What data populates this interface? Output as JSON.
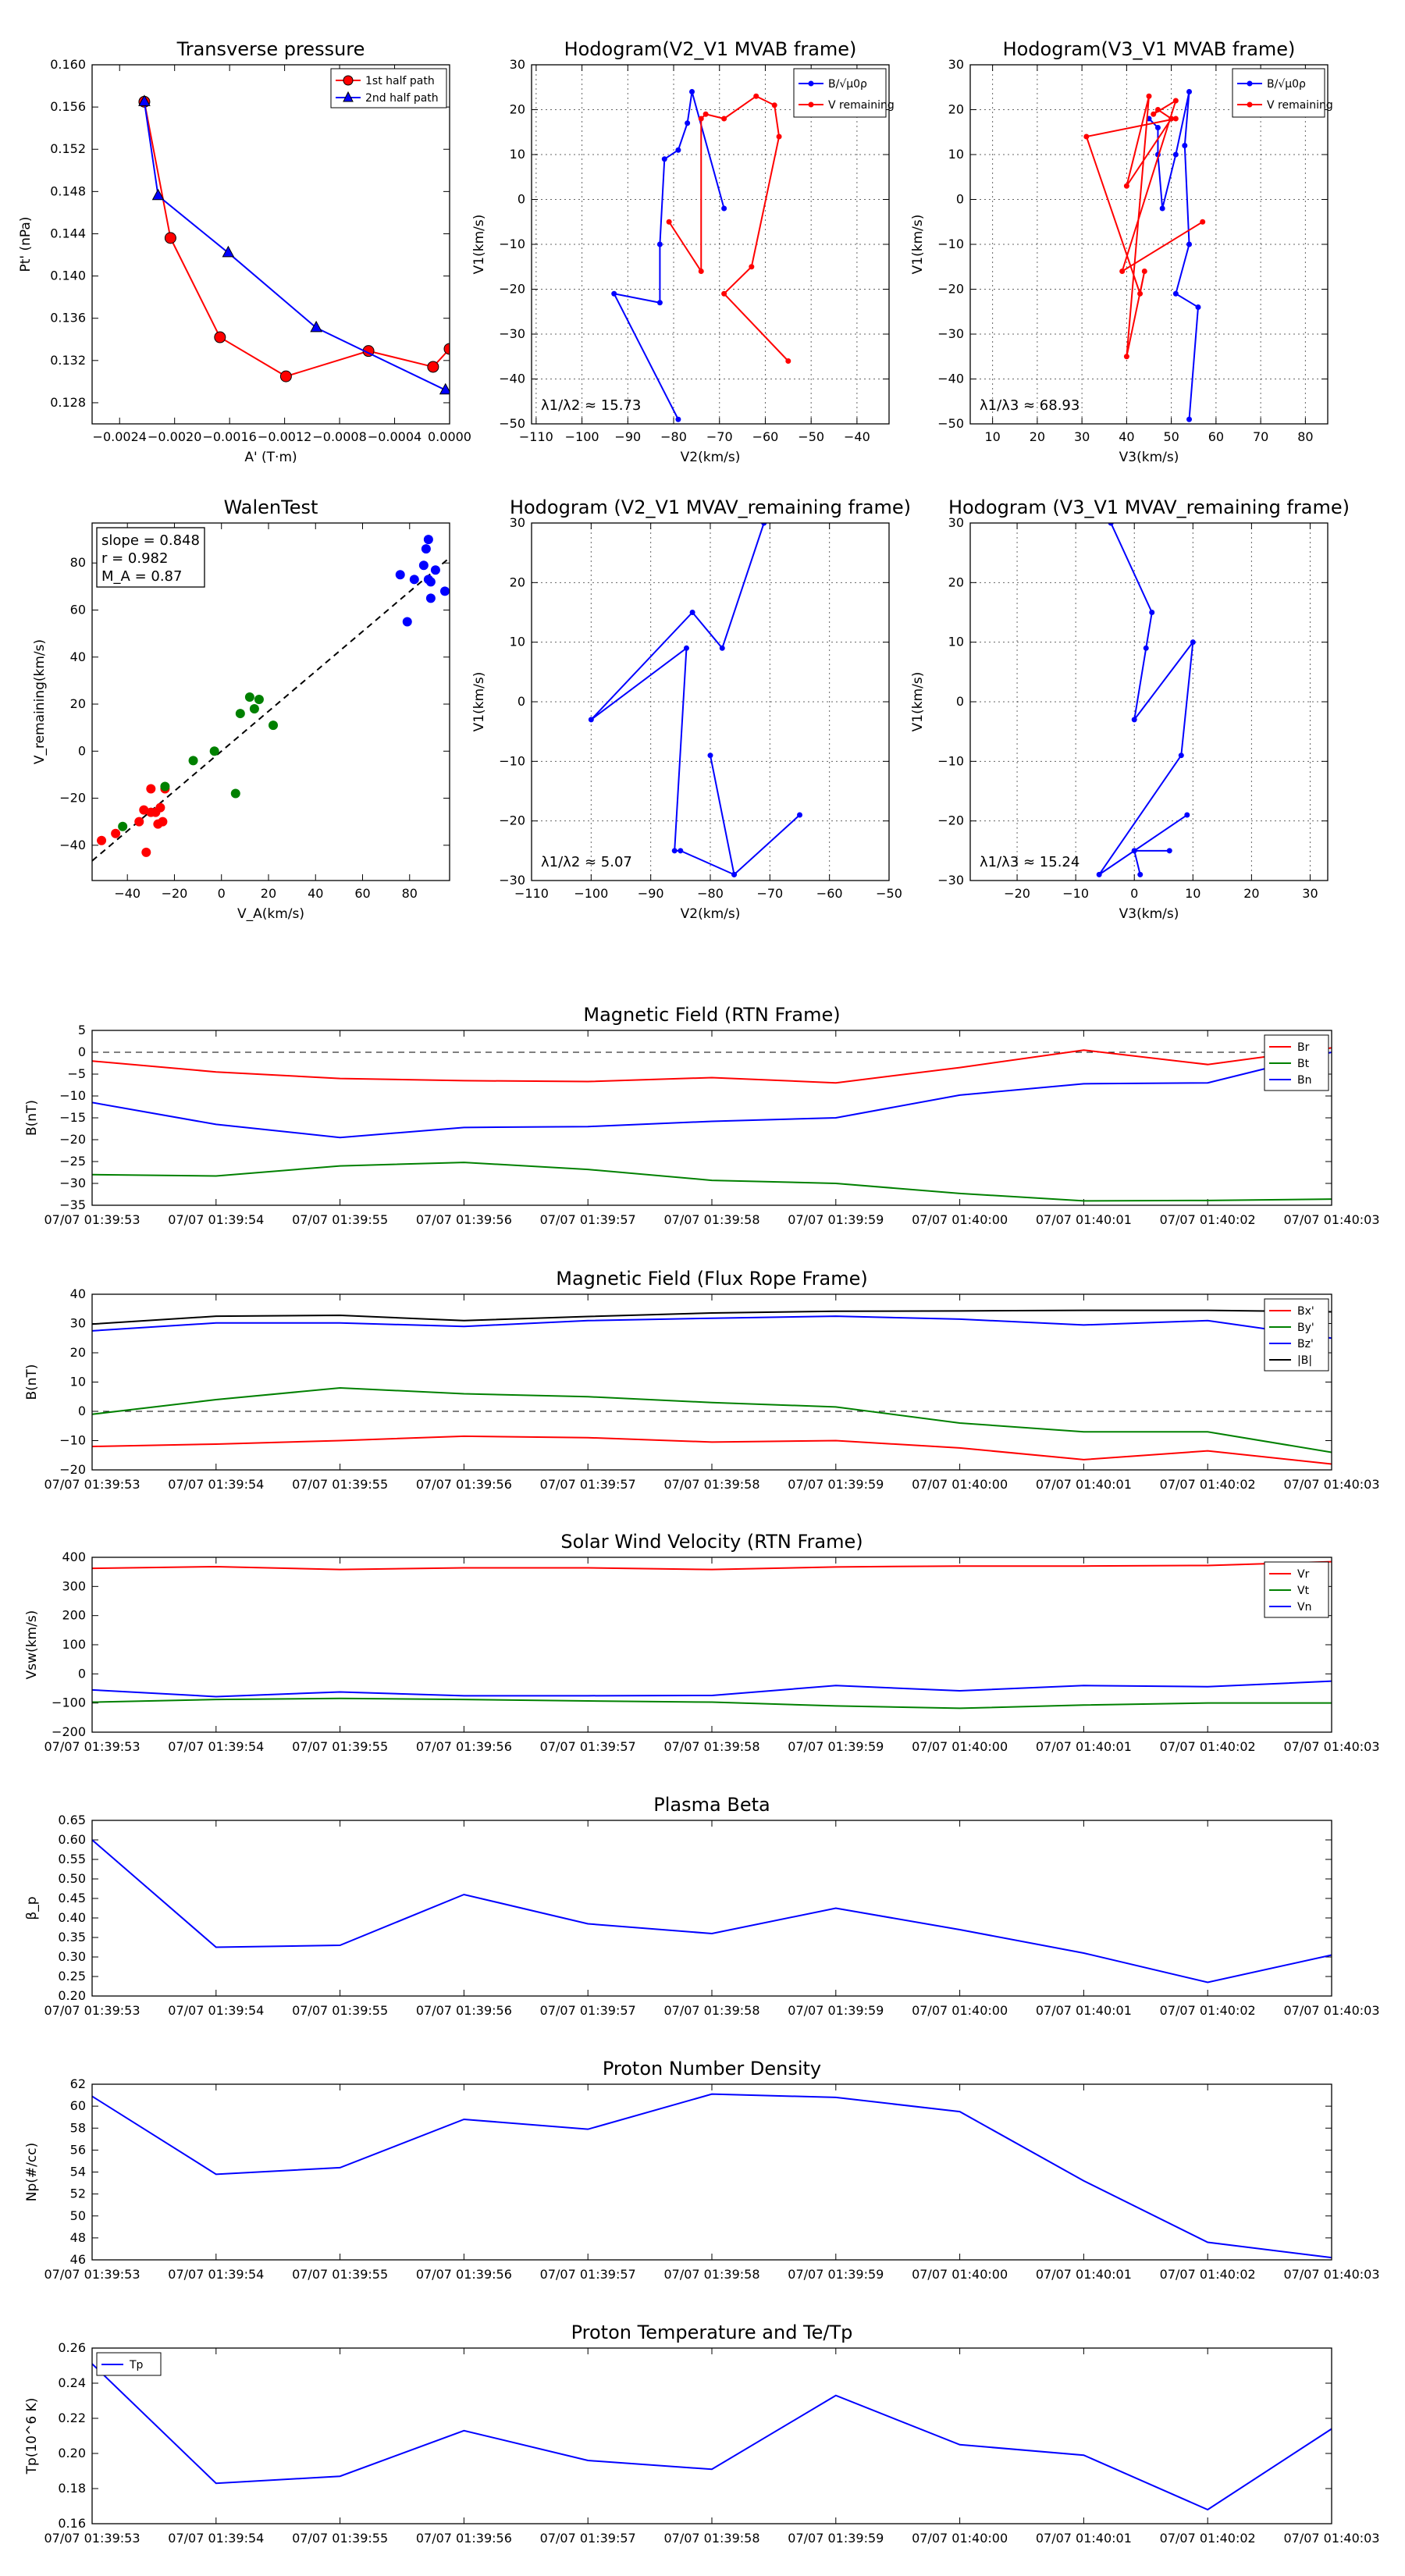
{
  "chart_data": [
    {
      "id": "pt",
      "type": "line",
      "title": "Transverse pressure",
      "xlabel": "A' (T·m)",
      "ylabel": "Pt' (nPa)",
      "xlim": [
        -0.0026,
        0.0
      ],
      "ylim": [
        0.126,
        0.16
      ],
      "xticks": [
        -0.0024,
        -0.002,
        -0.0016,
        -0.0012,
        -0.0008,
        -0.0004,
        0.0
      ],
      "xtick_labels": [
        "−0.0024",
        "−0.0020",
        "−0.0016",
        "−0.0012",
        "−0.0008",
        "−0.0004",
        "0.0000"
      ],
      "yticks": [
        0.128,
        0.132,
        0.136,
        0.14,
        0.144,
        0.148,
        0.152,
        0.156,
        0.16
      ],
      "ytick_labels": [
        "0.128",
        "0.132",
        "0.136",
        "0.140",
        "0.144",
        "0.148",
        "0.152",
        "0.156",
        "0.160"
      ],
      "grid": false,
      "legend": "top-right",
      "series": [
        {
          "name": "1st half path",
          "color": "#ff0000",
          "marker": "circle",
          "x": [
            -0.00222,
            -0.00203,
            -0.00167,
            -0.00119,
            -0.00059,
            -0.00012,
            0.0
          ],
          "y": [
            0.1565,
            0.1436,
            0.1342,
            0.1305,
            0.1329,
            0.1314,
            0.1331
          ]
        },
        {
          "name": "2nd half path",
          "color": "#0000ff",
          "marker": "triangle",
          "x": [
            -0.00222,
            -0.00212,
            -0.00161,
            -0.00097,
            -3e-05
          ],
          "y": [
            0.1565,
            0.1476,
            0.1422,
            0.1351,
            0.1292
          ]
        }
      ]
    },
    {
      "id": "hod1",
      "type": "line",
      "title": "Hodogram(V2_V1 MVAB frame)",
      "xlabel": "V2(km/s)",
      "ylabel": "V1(km/s)",
      "xlim": [
        -111,
        -33
      ],
      "ylim": [
        -50,
        30
      ],
      "xticks": [
        -110,
        -100,
        -90,
        -80,
        -70,
        -60,
        -50,
        -40
      ],
      "yticks": [
        -50,
        -40,
        -30,
        -20,
        -10,
        0,
        10,
        20,
        30
      ],
      "grid": true,
      "legend": "top-right",
      "annotation": "λ1/λ2 ≈ 15.73",
      "series": [
        {
          "name": "B/√μ0ρ",
          "color": "#0000ff",
          "x": [
            -69,
            -76,
            -77,
            -79,
            -82,
            -83,
            -83,
            -93,
            -79
          ],
          "y": [
            -2,
            24,
            17,
            11,
            9,
            -10,
            -23,
            -21,
            -49
          ]
        },
        {
          "name": "V remaining",
          "color": "#ff0000",
          "x": [
            -81,
            -74,
            -74,
            -73,
            -69,
            -62,
            -58,
            -57,
            -63,
            -69,
            -55
          ],
          "y": [
            -5,
            -16,
            18,
            19,
            18,
            23,
            21,
            14,
            -15,
            -21,
            -36
          ]
        }
      ]
    },
    {
      "id": "hod2",
      "type": "line",
      "title": "Hodogram(V3_V1 MVAB frame)",
      "xlabel": "V3(km/s)",
      "ylabel": "V1(km/s)",
      "xlim": [
        5,
        85
      ],
      "ylim": [
        -50,
        30
      ],
      "xticks": [
        10,
        20,
        30,
        40,
        50,
        60,
        70,
        80
      ],
      "yticks": [
        -50,
        -40,
        -30,
        -20,
        -10,
        0,
        10,
        20,
        30
      ],
      "grid": true,
      "legend": "top-right",
      "annotation": "λ1/λ3 ≈ 68.93",
      "series": [
        {
          "name": "B/√μ0ρ",
          "color": "#0000ff",
          "x": [
            45,
            47,
            47,
            48,
            51,
            54,
            53,
            54,
            51,
            56,
            54
          ],
          "y": [
            18,
            16,
            10,
            -2,
            10,
            24,
            12,
            -10,
            -21,
            -24,
            -49
          ]
        },
        {
          "name": "V remaining",
          "color": "#ff0000",
          "x": [
            57,
            39,
            51,
            46,
            47,
            50,
            40,
            45,
            40,
            44,
            43,
            31,
            51
          ],
          "y": [
            -5,
            -16,
            22,
            19,
            20,
            18,
            3,
            23,
            -35,
            -16,
            -21,
            14,
            18
          ]
        }
      ]
    },
    {
      "id": "walen",
      "type": "scatter",
      "title": "WalenTest",
      "xlabel": "V_A(km/s)",
      "ylabel": "V_remaining(km/s)",
      "xlim": [
        -55,
        97
      ],
      "ylim": [
        -55,
        97
      ],
      "xticks": [
        -40,
        -20,
        0,
        20,
        40,
        60,
        80
      ],
      "yticks": [
        -40,
        -20,
        0,
        20,
        40,
        60,
        80
      ],
      "grid": false,
      "annotation": [
        "slope = 0.848",
        "r = 0.982",
        "M_A = 0.87"
      ],
      "fit": {
        "slope": 0.848,
        "intercept": 0
      },
      "series": [
        {
          "name": "red",
          "color": "#ff0000",
          "x": [
            -51,
            -45,
            -35,
            -33,
            -32,
            -30,
            -30,
            -28,
            -27,
            -25,
            -26,
            -24
          ],
          "y": [
            -38,
            -35,
            -30,
            -25,
            -43,
            -26,
            -16,
            -26,
            -31,
            -30,
            -24,
            -16
          ]
        },
        {
          "name": "green",
          "color": "#008000",
          "x": [
            -42,
            -24,
            -12,
            -3,
            6,
            8,
            12,
            14,
            16,
            22
          ],
          "y": [
            -32,
            -15,
            -4,
            0,
            -18,
            16,
            23,
            18,
            22,
            11
          ]
        },
        {
          "name": "blue",
          "color": "#0000ff",
          "x": [
            76,
            79,
            82,
            86,
            87,
            88,
            88,
            89,
            89,
            91,
            95
          ],
          "y": [
            75,
            55,
            73,
            79,
            86,
            73,
            90,
            72,
            65,
            77,
            68
          ]
        }
      ]
    },
    {
      "id": "hod3",
      "type": "line",
      "title": "Hodogram (V2_V1 MVAV_remaining frame)",
      "xlabel": "V2(km/s)",
      "ylabel": "V1(km/s)",
      "xlim": [
        -110,
        -50
      ],
      "ylim": [
        -30,
        30
      ],
      "xticks": [
        -110,
        -100,
        -90,
        -80,
        -70,
        -60,
        -50
      ],
      "yticks": [
        -30,
        -20,
        -10,
        0,
        10,
        20,
        30
      ],
      "grid": true,
      "annotation": "λ1/λ2 ≈ 5.07",
      "series": [
        {
          "name": "B",
          "color": "#0000ff",
          "x": [
            -71,
            -78,
            -83,
            -100,
            -84,
            -86,
            -85,
            -76,
            -65,
            -76,
            -80
          ],
          "y": [
            30,
            9,
            15,
            -3,
            9,
            -25,
            -25,
            -29,
            -19,
            -29,
            -9
          ]
        }
      ]
    },
    {
      "id": "hod4",
      "type": "line",
      "title": "Hodogram (V3_V1 MVAV_remaining frame)",
      "xlabel": "V3(km/s)",
      "ylabel": "V1(km/s)",
      "xlim": [
        -28,
        33
      ],
      "ylim": [
        -30,
        30
      ],
      "xticks": [
        -20,
        -10,
        0,
        10,
        20,
        30
      ],
      "yticks": [
        -30,
        -20,
        -10,
        0,
        10,
        20,
        30
      ],
      "grid": true,
      "annotation": "λ1/λ3 ≈ 15.24",
      "series": [
        {
          "name": "B",
          "color": "#0000ff",
          "x": [
            -4,
            3,
            2,
            0,
            10,
            8,
            -6,
            9,
            0,
            6,
            0,
            1
          ],
          "y": [
            30,
            15,
            9,
            -3,
            10,
            -9,
            -29,
            -19,
            -25,
            -25,
            -25,
            -29
          ]
        }
      ]
    },
    {
      "id": "brtn",
      "type": "line",
      "title": "Magnetic Field (RTN Frame)",
      "xlabel": "",
      "ylabel": "B(nT)",
      "ylim": [
        -35,
        5
      ],
      "yticks": [
        5,
        0,
        -5,
        -10,
        -15,
        -20,
        -25,
        -30,
        -35
      ],
      "zero_line": true,
      "legend": "top-right",
      "series": [
        {
          "name": "Br",
          "color": "#ff0000",
          "values": [
            -2,
            -4.5,
            -6,
            -6.5,
            -6.7,
            -5.8,
            -7,
            -3.5,
            0.5,
            -2.8,
            1
          ]
        },
        {
          "name": "Bt",
          "color": "#008000",
          "values": [
            -28,
            -28.3,
            -26,
            -25.2,
            -26.8,
            -29.3,
            -30,
            -32.3,
            -34,
            -33.9,
            -33.6
          ]
        },
        {
          "name": "Bn",
          "color": "#0000ff",
          "values": [
            -11.5,
            -16.5,
            -19.5,
            -17.2,
            -17,
            -15.8,
            -15,
            -9.8,
            -7.2,
            -7,
            0
          ]
        }
      ]
    },
    {
      "id": "bfr",
      "type": "line",
      "title": "Magnetic Field (Flux Rope Frame)",
      "xlabel": "",
      "ylabel": "B(nT)",
      "ylim": [
        -20,
        40
      ],
      "yticks": [
        40,
        30,
        20,
        10,
        0,
        -10,
        -20
      ],
      "zero_line": true,
      "legend": "top-right",
      "series": [
        {
          "name": "Bx'",
          "color": "#ff0000",
          "values": [
            -12,
            -11.2,
            -10,
            -8.5,
            -9,
            -10.5,
            -10,
            -12.5,
            -16.5,
            -13.5,
            -18
          ]
        },
        {
          "name": "By'",
          "color": "#008000",
          "values": [
            -1,
            4,
            8,
            6,
            5,
            3,
            1.5,
            -4,
            -7,
            -7,
            -14
          ]
        },
        {
          "name": "Bz'",
          "color": "#0000ff",
          "values": [
            27.5,
            30.2,
            30.2,
            29,
            31,
            31.8,
            32.5,
            31.5,
            29.5,
            31,
            25
          ]
        },
        {
          "name": "|B|",
          "color": "#000000",
          "values": [
            29.8,
            32.5,
            32.8,
            31,
            32.4,
            33.6,
            34.2,
            34.3,
            34.5,
            34.5,
            34
          ]
        }
      ]
    },
    {
      "id": "vsw",
      "type": "line",
      "title": "Solar Wind Velocity (RTN Frame)",
      "xlabel": "",
      "ylabel": "Vsw(km/s)",
      "ylim": [
        -200,
        400
      ],
      "yticks": [
        400,
        300,
        200,
        100,
        0,
        -100,
        -200
      ],
      "legend": "top-right",
      "series": [
        {
          "name": "Vr",
          "color": "#ff0000",
          "values": [
            362,
            368,
            358,
            364,
            364,
            358,
            367,
            370,
            370,
            372,
            385
          ]
        },
        {
          "name": "Vt",
          "color": "#008000",
          "values": [
            -97,
            -88,
            -84,
            -88,
            -93,
            -97,
            -110,
            -118,
            -107,
            -100,
            -100
          ]
        },
        {
          "name": "Vn",
          "color": "#0000ff",
          "values": [
            -55,
            -78,
            -62,
            -75,
            -75,
            -74,
            -40,
            -58,
            -40,
            -44,
            -25
          ]
        }
      ]
    },
    {
      "id": "beta",
      "type": "line",
      "title": "Plasma Beta",
      "xlabel": "",
      "ylabel": "β_p",
      "ylim": [
        0.2,
        0.65
      ],
      "yticks": [
        0.65,
        0.6,
        0.55,
        0.5,
        0.45,
        0.4,
        0.35,
        0.3,
        0.25,
        0.2
      ],
      "ytick_labels": [
        "0.65",
        "0.60",
        "0.55",
        "0.50",
        "0.45",
        "0.40",
        "0.35",
        "0.30",
        "0.25",
        "0.20"
      ],
      "series": [
        {
          "name": "beta",
          "color": "#0000ff",
          "values": [
            0.6,
            0.325,
            0.33,
            0.46,
            0.385,
            0.36,
            0.425,
            0.37,
            0.31,
            0.235,
            0.305
          ]
        }
      ]
    },
    {
      "id": "np",
      "type": "line",
      "title": "Proton Number Density",
      "xlabel": "",
      "ylabel": "Np(#/cc)",
      "ylim": [
        46,
        62
      ],
      "yticks": [
        62,
        60,
        58,
        56,
        54,
        52,
        50,
        48,
        46
      ],
      "series": [
        {
          "name": "Np",
          "color": "#0000ff",
          "values": [
            60.9,
            53.8,
            54.4,
            58.8,
            57.9,
            61.1,
            60.8,
            59.5,
            53.2,
            47.6,
            46.2
          ]
        }
      ]
    },
    {
      "id": "tp",
      "type": "line",
      "title": "Proton Temperature and Te/Tp",
      "xlabel": "",
      "ylabel": "Tp(10^6 K)",
      "ylim": [
        0.16,
        0.26
      ],
      "yticks": [
        0.26,
        0.24,
        0.22,
        0.2,
        0.18,
        0.16
      ],
      "ytick_labels": [
        "0.26",
        "0.24",
        "0.22",
        "0.20",
        "0.18",
        "0.16"
      ],
      "legend": "top-left",
      "series": [
        {
          "name": "Tp",
          "color": "#0000ff",
          "values": [
            0.251,
            0.183,
            0.187,
            0.213,
            0.196,
            0.191,
            0.233,
            0.205,
            0.199,
            0.168,
            0.214
          ]
        }
      ]
    }
  ],
  "time_ticks": [
    "07/07 01:39:53",
    "07/07 01:39:54",
    "07/07 01:39:55",
    "07/07 01:39:56",
    "07/07 01:39:57",
    "07/07 01:39:58",
    "07/07 01:39:59",
    "07/07 01:40:00",
    "07/07 01:40:01",
    "07/07 01:40:02",
    "07/07 01:40:03"
  ]
}
